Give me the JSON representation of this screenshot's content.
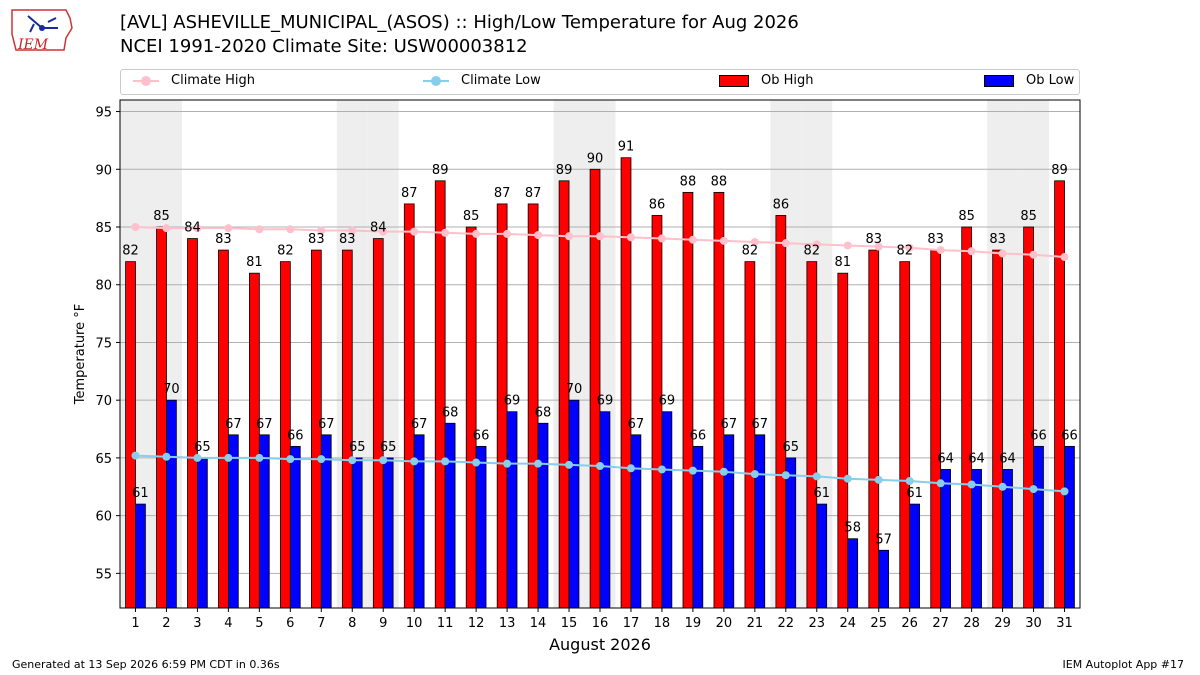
{
  "header": {
    "title": "[AVL] ASHEVILLE_MUNICIPAL_(ASOS) :: High/Low Temperature for Aug 2026",
    "subtitle": "NCEI 1991-2020 Climate Site: USW00003812",
    "logo_text": "IEM"
  },
  "footer": {
    "generated": "Generated at 13 Sep 2026 6:59 PM CDT in 0.36s",
    "app": "IEM Autoplot App #17"
  },
  "colors": {
    "ob_high": "#ff0000",
    "ob_low": "#0000ff",
    "climate_high": "#ffc0cb",
    "climate_low": "#87ceeb",
    "weekend_shade": "#eeeeee",
    "grid": "#b0b0b0"
  },
  "chart_data": {
    "type": "bar",
    "xlabel": "August 2026",
    "ylabel": "Temperature °F",
    "ylim": [
      52,
      96
    ],
    "yticks": [
      55,
      60,
      65,
      70,
      75,
      80,
      85,
      90,
      95
    ],
    "categories": [
      "1",
      "2",
      "3",
      "4",
      "5",
      "6",
      "7",
      "8",
      "9",
      "10",
      "11",
      "12",
      "13",
      "14",
      "15",
      "16",
      "17",
      "18",
      "19",
      "20",
      "21",
      "22",
      "23",
      "24",
      "25",
      "26",
      "27",
      "28",
      "29",
      "30",
      "31"
    ],
    "shaded_weekend_days": [
      1,
      2,
      8,
      9,
      15,
      16,
      22,
      23,
      29,
      30
    ],
    "grid": "horizontal",
    "legend_position": "top",
    "series": [
      {
        "name": "Climate High",
        "kind": "line",
        "values": [
          85.0,
          84.9,
          84.9,
          84.9,
          84.8,
          84.8,
          84.7,
          84.7,
          84.6,
          84.6,
          84.5,
          84.4,
          84.4,
          84.3,
          84.2,
          84.2,
          84.1,
          84.0,
          83.9,
          83.8,
          83.7,
          83.6,
          83.5,
          83.4,
          83.3,
          83.2,
          83.0,
          82.9,
          82.7,
          82.6,
          82.4
        ]
      },
      {
        "name": "Climate Low",
        "kind": "line",
        "values": [
          65.2,
          65.1,
          65.0,
          65.0,
          65.0,
          64.9,
          64.9,
          64.8,
          64.8,
          64.7,
          64.7,
          64.6,
          64.5,
          64.5,
          64.4,
          64.3,
          64.1,
          64.0,
          63.9,
          63.8,
          63.6,
          63.5,
          63.4,
          63.2,
          63.1,
          63.0,
          62.8,
          62.7,
          62.5,
          62.3,
          62.1
        ]
      },
      {
        "name": "Ob High",
        "kind": "bar",
        "values": [
          82,
          85,
          84,
          83,
          81,
          82,
          83,
          83,
          84,
          87,
          89,
          85,
          87,
          87,
          89,
          90,
          91,
          86,
          88,
          88,
          82,
          86,
          82,
          81,
          83,
          82,
          83,
          85,
          83,
          85,
          89
        ]
      },
      {
        "name": "Ob Low",
        "kind": "bar",
        "values": [
          61,
          70,
          65,
          67,
          67,
          66,
          67,
          65,
          65,
          67,
          68,
          66,
          69,
          68,
          70,
          69,
          67,
          69,
          66,
          67,
          67,
          65,
          61,
          58,
          57,
          61,
          64,
          64,
          64,
          66,
          66
        ]
      }
    ]
  }
}
